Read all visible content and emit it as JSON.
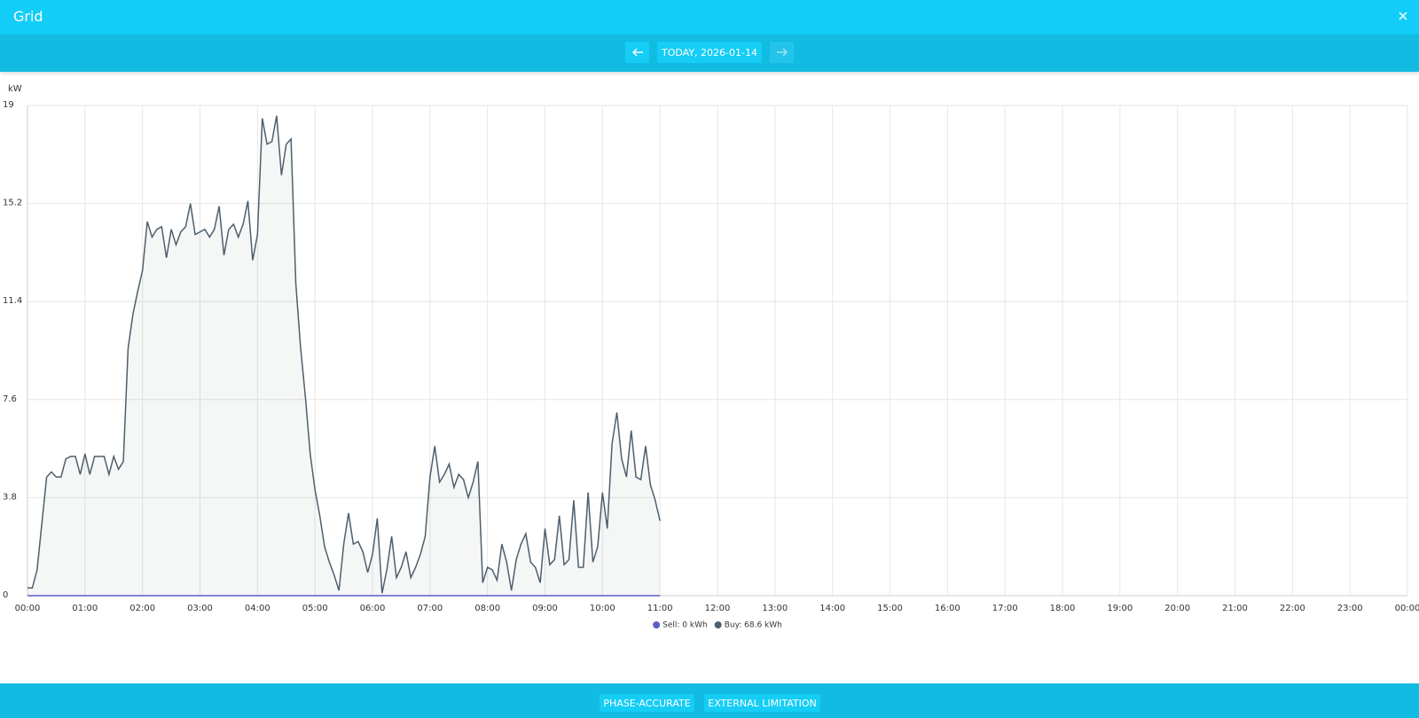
{
  "header": {
    "title": "Grid"
  },
  "navigation": {
    "date_label": "TODAY, 2026-01-14"
  },
  "chart_data": {
    "type": "area",
    "y_unit": "kW",
    "x": [
      0,
      5,
      10,
      15,
      20,
      25,
      30,
      35,
      40,
      45,
      50,
      55,
      60,
      65,
      70,
      75,
      80,
      85,
      90,
      95,
      100,
      105,
      110,
      115,
      120,
      125,
      130,
      135,
      140,
      145,
      150,
      155,
      160,
      165,
      170,
      175,
      180,
      185,
      190,
      195,
      200,
      205,
      210,
      215,
      220,
      225,
      230,
      235,
      240,
      245,
      250,
      255,
      260,
      265,
      270,
      275,
      280,
      285,
      290,
      295,
      300,
      305,
      310,
      315,
      320,
      325,
      330,
      335,
      340,
      345,
      350,
      355,
      360,
      365,
      370,
      375,
      380,
      385,
      390,
      395,
      400,
      405,
      410,
      415,
      420,
      425,
      430,
      435,
      440,
      445,
      450,
      455,
      460,
      465,
      470,
      475,
      480,
      485,
      490,
      495,
      500,
      505,
      510,
      515,
      520,
      525,
      530,
      535,
      540,
      545,
      550,
      555,
      560,
      565,
      570,
      575,
      580,
      585,
      590,
      595,
      600,
      605,
      610,
      615,
      620,
      625,
      630,
      635,
      640,
      645,
      650,
      655,
      660
    ],
    "series": [
      {
        "name": "Sell: 0 kWh",
        "color": "#5c5fc4",
        "values": [
          0,
          0,
          0,
          0,
          0,
          0,
          0,
          0,
          0,
          0,
          0,
          0,
          0,
          0,
          0,
          0,
          0,
          0,
          0,
          0,
          0,
          0,
          0,
          0,
          0,
          0,
          0,
          0,
          0,
          0,
          0,
          0,
          0,
          0,
          0,
          0,
          0,
          0,
          0,
          0,
          0,
          0,
          0,
          0,
          0,
          0,
          0,
          0,
          0,
          0,
          0,
          0,
          0,
          0,
          0,
          0,
          0,
          0,
          0,
          0,
          0,
          0,
          0,
          0,
          0,
          0,
          0,
          0,
          0,
          0,
          0,
          0,
          0,
          0,
          0,
          0,
          0,
          0,
          0,
          0,
          0,
          0,
          0,
          0,
          0,
          0,
          0,
          0,
          0,
          0,
          0,
          0,
          0,
          0,
          0,
          0,
          0,
          0,
          0,
          0,
          0,
          0,
          0,
          0,
          0,
          0,
          0,
          0,
          0,
          0,
          0,
          0,
          0,
          0,
          0,
          0,
          0,
          0,
          0,
          0,
          0,
          0,
          0,
          0,
          0,
          0,
          0,
          0,
          0,
          0,
          0,
          0,
          0
        ]
      },
      {
        "name": "Buy: 68.6 kWh",
        "color": "#4e5f6d",
        "values": [
          0.3,
          0.3,
          1.0,
          2.8,
          4.6,
          4.8,
          4.6,
          4.6,
          5.3,
          5.4,
          5.4,
          4.7,
          5.5,
          4.7,
          5.4,
          5.4,
          5.4,
          4.7,
          5.4,
          4.9,
          5.2,
          9.6,
          10.9,
          11.8,
          12.6,
          14.5,
          13.9,
          14.2,
          14.3,
          13.1,
          14.2,
          13.6,
          14.1,
          14.3,
          15.2,
          14.0,
          14.1,
          14.2,
          13.9,
          14.2,
          15.1,
          13.2,
          14.2,
          14.4,
          13.9,
          14.4,
          15.3,
          13.0,
          14.0,
          18.5,
          17.5,
          17.6,
          18.6,
          16.3,
          17.5,
          17.7,
          12.1,
          9.6,
          7.7,
          5.5,
          4.1,
          3.1,
          1.9,
          1.3,
          0.8,
          0.2,
          2.0,
          3.2,
          2.0,
          2.1,
          1.7,
          0.9,
          1.6,
          3.0,
          0.1,
          1.0,
          2.3,
          0.7,
          1.1,
          1.7,
          0.7,
          1.1,
          1.6,
          2.3,
          4.6,
          5.8,
          4.4,
          4.7,
          5.1,
          4.2,
          4.7,
          4.5,
          3.8,
          4.4,
          5.2,
          0.5,
          1.1,
          1.0,
          0.6,
          2.0,
          1.3,
          0.2,
          1.4,
          2.0,
          2.4,
          1.3,
          1.1,
          0.5,
          2.6,
          1.2,
          1.4,
          3.1,
          1.2,
          1.4,
          3.7,
          1.1,
          1.1,
          4.0,
          1.3,
          1.9,
          4.0,
          2.6,
          5.9,
          7.1,
          5.3,
          4.6,
          6.4,
          4.6,
          4.5,
          5.8,
          4.3,
          3.7,
          2.9
        ]
      }
    ],
    "xlim": [
      0,
      1440
    ],
    "xticks": [
      {
        "value": 0,
        "label": "00:00"
      },
      {
        "value": 60,
        "label": "01:00"
      },
      {
        "value": 120,
        "label": "02:00"
      },
      {
        "value": 180,
        "label": "03:00"
      },
      {
        "value": 240,
        "label": "04:00"
      },
      {
        "value": 300,
        "label": "05:00"
      },
      {
        "value": 360,
        "label": "06:00"
      },
      {
        "value": 420,
        "label": "07:00"
      },
      {
        "value": 480,
        "label": "08:00"
      },
      {
        "value": 540,
        "label": "09:00"
      },
      {
        "value": 600,
        "label": "10:00"
      },
      {
        "value": 660,
        "label": "11:00"
      },
      {
        "value": 720,
        "label": "12:00"
      },
      {
        "value": 780,
        "label": "13:00"
      },
      {
        "value": 840,
        "label": "14:00"
      },
      {
        "value": 900,
        "label": "15:00"
      },
      {
        "value": 960,
        "label": "16:00"
      },
      {
        "value": 1020,
        "label": "17:00"
      },
      {
        "value": 1080,
        "label": "18:00"
      },
      {
        "value": 1140,
        "label": "19:00"
      },
      {
        "value": 1200,
        "label": "20:00"
      },
      {
        "value": 1260,
        "label": "21:00"
      },
      {
        "value": 1320,
        "label": "22:00"
      },
      {
        "value": 1380,
        "label": "23:00"
      },
      {
        "value": 1440,
        "label": "00:00"
      }
    ],
    "ylim": [
      0,
      19
    ],
    "yticks": [
      0,
      3.8,
      7.6,
      11.4,
      15.2,
      19
    ],
    "grid": true,
    "legend": "bottom"
  },
  "footer": {
    "buttons": [
      "PHASE-ACCURATE",
      "EXTERNAL LIMITATION"
    ]
  }
}
